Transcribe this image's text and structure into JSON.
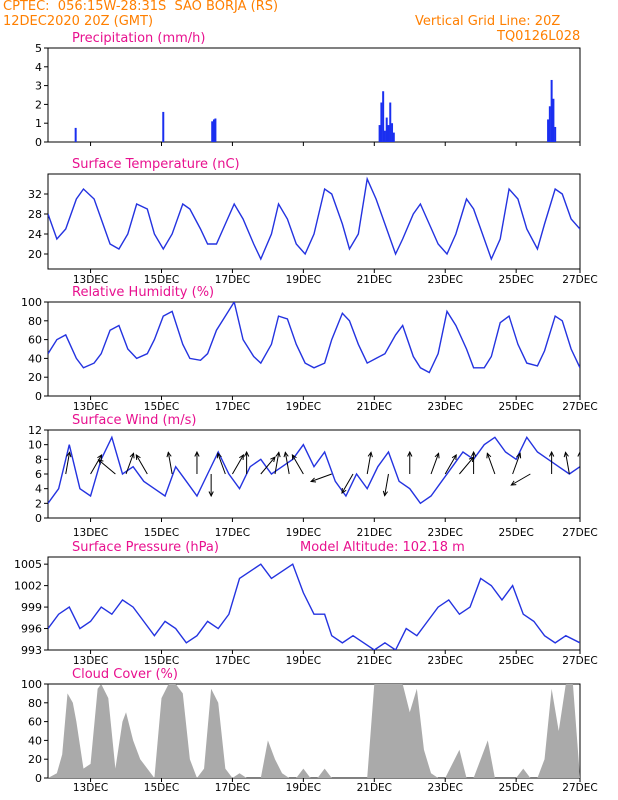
{
  "header": {
    "line1": "CPTEC:  056:15W-28:31S  SAO BORJA (RS)",
    "line2": "12DEC2020 20Z (GMT)",
    "grid_note": "Vertical Grid Line: 20Z",
    "code": "TQ0126L028"
  },
  "colors": {
    "header": "#ff7f00",
    "title": "#e8118f",
    "line": "#2433e0",
    "bar": "#1a2ff0",
    "cloud": "#aaaaaa",
    "arrow": "#000000"
  },
  "x_ticks": [
    "13DEC",
    "15DEC",
    "17DEC",
    "19DEC",
    "21DEC",
    "23DEC",
    "25DEC",
    "27DEC"
  ],
  "chart_data": [
    {
      "id": "precip",
      "type": "bar",
      "title": "Precipitation (mm/h)",
      "ylim": [
        0,
        5
      ],
      "yticks": [
        "0",
        "1",
        "2",
        "3",
        "4",
        "5"
      ],
      "x": [
        0.78,
        3.25,
        4.63,
        4.68,
        4.72,
        9.35,
        9.4,
        9.45,
        9.5,
        9.55,
        9.6,
        9.65,
        9.7,
        9.75,
        14.1,
        14.15,
        14.2,
        14.25,
        14.3
      ],
      "values": [
        0.75,
        1.6,
        1.1,
        1.2,
        1.25,
        0.9,
        2.1,
        2.7,
        0.6,
        1.3,
        0.9,
        2.1,
        1.0,
        0.5,
        1.2,
        1.9,
        3.3,
        2.3,
        0.8
      ]
    },
    {
      "id": "temp",
      "type": "line",
      "title": "Surface Temperature (nC)",
      "ylim": [
        17,
        36
      ],
      "yticks": [
        "20",
        "24",
        "28",
        "32"
      ],
      "x": [
        0.0,
        0.25,
        0.5,
        0.8,
        1.0,
        1.3,
        1.5,
        1.75,
        2.0,
        2.25,
        2.5,
        2.8,
        3.0,
        3.25,
        3.5,
        3.8,
        4.0,
        4.3,
        4.5,
        4.75,
        5.0,
        5.25,
        5.5,
        5.8,
        6.0,
        6.3,
        6.5,
        6.75,
        7.0,
        7.25,
        7.5,
        7.8,
        8.0,
        8.3,
        8.5,
        8.75,
        9.0,
        9.25,
        9.5,
        9.8,
        10.0,
        10.3,
        10.5,
        10.75,
        11.0,
        11.25,
        11.5,
        11.8,
        12.0,
        12.3,
        12.5,
        12.75,
        13.0,
        13.25,
        13.5,
        13.8,
        14.0,
        14.3,
        14.5,
        14.75,
        15.0
      ],
      "values": [
        28,
        23,
        25,
        31,
        33,
        31,
        27,
        22,
        21,
        24,
        30,
        29,
        24,
        21,
        24,
        30,
        29,
        25,
        22,
        22,
        26,
        30,
        27,
        22,
        19,
        24,
        30,
        27,
        22,
        20,
        24,
        33,
        32,
        26,
        21,
        24,
        35,
        31,
        26,
        20,
        23,
        28,
        30,
        26,
        22,
        20,
        24,
        31,
        29,
        23,
        19,
        23,
        33,
        31,
        25,
        21,
        26,
        33,
        32,
        27,
        25
      ]
    },
    {
      "id": "rh",
      "type": "line",
      "title": "Relative Humidity (%)",
      "ylim": [
        0,
        100
      ],
      "yticks": [
        "0",
        "20",
        "40",
        "60",
        "80",
        "100"
      ],
      "x": [
        0.0,
        0.25,
        0.5,
        0.8,
        1.0,
        1.3,
        1.5,
        1.75,
        2.0,
        2.25,
        2.5,
        2.8,
        3.0,
        3.25,
        3.5,
        3.8,
        4.0,
        4.3,
        4.5,
        4.75,
        5.0,
        5.25,
        5.5,
        5.8,
        6.0,
        6.3,
        6.5,
        6.75,
        7.0,
        7.25,
        7.5,
        7.8,
        8.0,
        8.3,
        8.5,
        8.75,
        9.0,
        9.25,
        9.5,
        9.8,
        10.0,
        10.3,
        10.5,
        10.75,
        11.0,
        11.25,
        11.5,
        11.8,
        12.0,
        12.3,
        12.5,
        12.75,
        13.0,
        13.25,
        13.5,
        13.8,
        14.0,
        14.3,
        14.5,
        14.75,
        15.0
      ],
      "values": [
        45,
        60,
        65,
        40,
        30,
        35,
        45,
        70,
        75,
        50,
        40,
        45,
        60,
        85,
        90,
        55,
        40,
        38,
        45,
        70,
        85,
        100,
        60,
        42,
        35,
        55,
        85,
        82,
        55,
        35,
        30,
        35,
        60,
        88,
        80,
        55,
        35,
        40,
        45,
        65,
        75,
        42,
        30,
        25,
        45,
        90,
        75,
        50,
        30,
        30,
        42,
        78,
        85,
        55,
        35,
        32,
        48,
        85,
        80,
        50,
        30
      ]
    },
    {
      "id": "wind",
      "type": "line",
      "title": "Surface Wind (m/s)",
      "ylim": [
        0,
        12
      ],
      "yticks": [
        "0",
        "2",
        "4",
        "6",
        "8",
        "10",
        "12"
      ],
      "x": [
        0.0,
        0.3,
        0.6,
        0.9,
        1.2,
        1.5,
        1.8,
        2.1,
        2.4,
        2.7,
        3.0,
        3.3,
        3.6,
        3.9,
        4.2,
        4.5,
        4.8,
        5.1,
        5.4,
        5.7,
        6.0,
        6.3,
        6.6,
        6.9,
        7.2,
        7.5,
        7.8,
        8.1,
        8.4,
        8.7,
        9.0,
        9.3,
        9.6,
        9.9,
        10.2,
        10.5,
        10.8,
        11.1,
        11.4,
        11.7,
        12.0,
        12.3,
        12.6,
        12.9,
        13.2,
        13.5,
        13.8,
        14.1,
        14.4,
        14.7,
        15.0
      ],
      "values": [
        2,
        4,
        10,
        4,
        3,
        8,
        11,
        6,
        7,
        5,
        4,
        3,
        7,
        5,
        3,
        6,
        9,
        6,
        4,
        7,
        8,
        6,
        7,
        8,
        10,
        7,
        9,
        5,
        3,
        6,
        4,
        7,
        9,
        5,
        4,
        2,
        3,
        5,
        7,
        9,
        8,
        10,
        11,
        9,
        8,
        11,
        9,
        8,
        7,
        6,
        7
      ],
      "arrow_x": [
        0.5,
        1.2,
        1.9,
        2.2,
        2.8,
        3.5,
        4.2,
        4.6,
        5.0,
        5.2,
        5.6,
        6.0,
        6.4,
        6.8,
        7.2,
        8.0,
        8.6,
        9.0,
        9.6,
        10.2,
        10.8,
        11.2,
        11.6,
        12.0,
        12.6,
        13.1,
        13.6,
        14.2,
        14.7,
        15.0
      ],
      "arrow_deg": [
        80,
        60,
        140,
        70,
        120,
        100,
        90,
        270,
        110,
        60,
        90,
        50,
        80,
        100,
        120,
        200,
        240,
        80,
        260,
        90,
        70,
        60,
        50,
        90,
        110,
        70,
        210,
        90,
        100,
        90
      ]
    },
    {
      "id": "pressure",
      "type": "line",
      "title": "Surface Pressure (hPa)",
      "annotation": "Model Altitude: 102.18 m",
      "ylim": [
        993,
        1006
      ],
      "yticks": [
        "993",
        "996",
        "999",
        "1002",
        "1005"
      ],
      "x": [
        0.0,
        0.3,
        0.6,
        0.9,
        1.2,
        1.5,
        1.8,
        2.1,
        2.4,
        2.7,
        3.0,
        3.3,
        3.6,
        3.9,
        4.2,
        4.5,
        4.8,
        5.1,
        5.4,
        5.7,
        6.0,
        6.3,
        6.6,
        6.9,
        7.2,
        7.5,
        7.8,
        8.0,
        8.3,
        8.6,
        8.9,
        9.2,
        9.5,
        9.8,
        10.1,
        10.4,
        10.7,
        11.0,
        11.3,
        11.6,
        11.9,
        12.2,
        12.5,
        12.8,
        13.1,
        13.4,
        13.7,
        14.0,
        14.3,
        14.6,
        15.0
      ],
      "values": [
        996,
        998,
        999,
        996,
        997,
        999,
        998,
        1000,
        999,
        997,
        995,
        997,
        996,
        994,
        995,
        997,
        996,
        998,
        1003,
        1004,
        1005,
        1003,
        1004,
        1005,
        1001,
        998,
        998,
        995,
        994,
        995,
        994,
        993,
        994,
        993,
        996,
        995,
        997,
        999,
        1000,
        998,
        999,
        1003,
        1002,
        1000,
        1002,
        998,
        997,
        995,
        994,
        995,
        994
      ]
    },
    {
      "id": "cloud",
      "type": "area",
      "title": "Cloud Cover (%)",
      "ylim": [
        0,
        100
      ],
      "yticks": [
        "0",
        "20",
        "40",
        "60",
        "80",
        "100"
      ],
      "x": [
        0.0,
        0.25,
        0.4,
        0.55,
        0.7,
        0.8,
        1.0,
        1.2,
        1.4,
        1.5,
        1.7,
        1.9,
        2.1,
        2.2,
        2.4,
        2.6,
        2.8,
        3.0,
        3.2,
        3.4,
        3.6,
        3.8,
        4.0,
        4.2,
        4.4,
        4.6,
        4.8,
        5.0,
        5.2,
        5.4,
        5.6,
        5.8,
        6.0,
        6.2,
        6.4,
        6.6,
        6.8,
        7.0,
        7.2,
        7.4,
        7.6,
        7.8,
        8.0,
        8.2,
        8.4,
        8.6,
        8.8,
        9.0,
        9.2,
        9.4,
        9.6,
        9.8,
        10.0,
        10.2,
        10.4,
        10.6,
        10.8,
        11.0,
        11.2,
        11.4,
        11.6,
        11.8,
        12.0,
        12.2,
        12.4,
        12.6,
        12.8,
        13.0,
        13.2,
        13.4,
        13.6,
        13.8,
        14.0,
        14.2,
        14.4,
        14.6,
        14.8,
        15.0
      ],
      "values": [
        0,
        5,
        25,
        90,
        80,
        60,
        10,
        15,
        95,
        100,
        85,
        10,
        60,
        70,
        40,
        20,
        10,
        0,
        85,
        100,
        100,
        90,
        20,
        0,
        10,
        95,
        80,
        10,
        0,
        5,
        0,
        0,
        0,
        40,
        20,
        5,
        0,
        0,
        10,
        0,
        0,
        10,
        0,
        0,
        0,
        0,
        0,
        0,
        100,
        100,
        100,
        100,
        100,
        70,
        95,
        30,
        5,
        0,
        0,
        15,
        30,
        0,
        0,
        20,
        40,
        0,
        0,
        0,
        0,
        10,
        0,
        0,
        20,
        95,
        50,
        100,
        100,
        0
      ]
    }
  ]
}
